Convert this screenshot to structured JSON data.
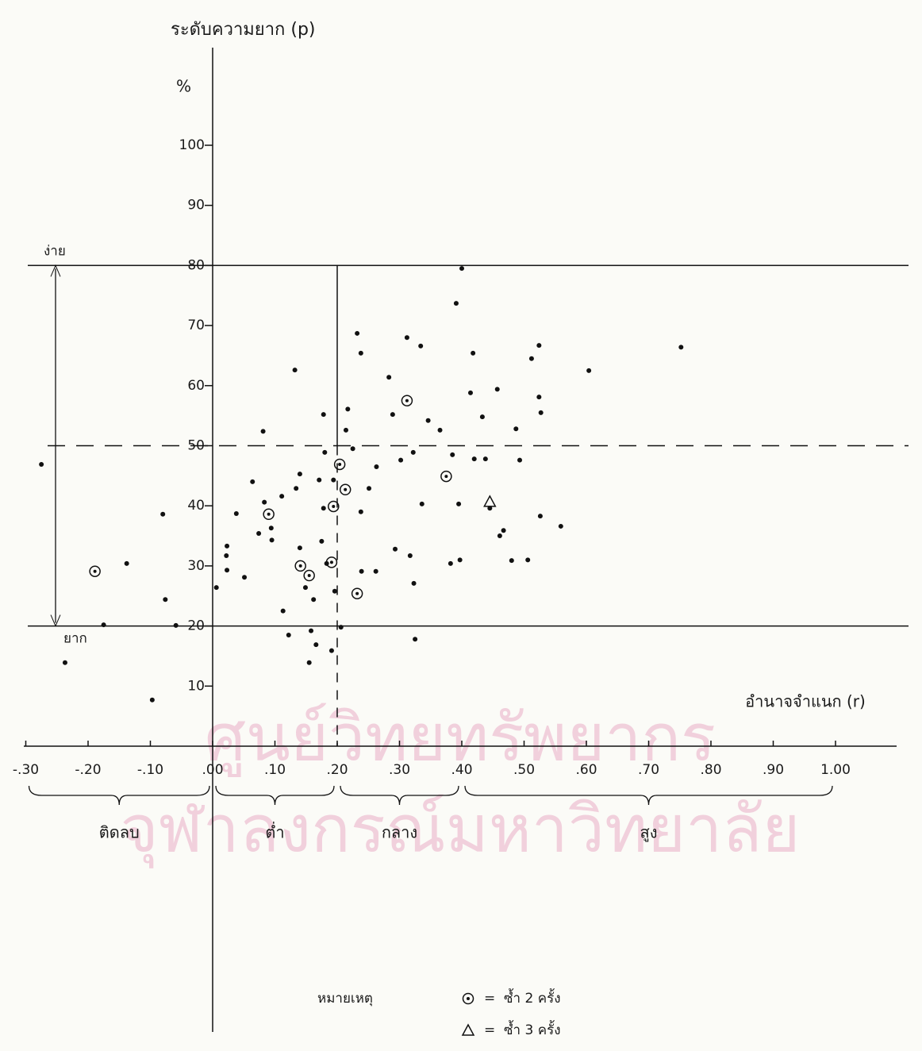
{
  "chart_data": {
    "type": "scatter",
    "title": "ระดับความยาก (p)",
    "y_unit": "%",
    "x_label": "อำนาจจำแนก (r)",
    "annotations": [
      "ง่าย",
      "ยาก"
    ],
    "xlim": [
      -0.3,
      1.0
    ],
    "ylim": [
      0,
      100
    ],
    "xticks": [
      {
        "value": -0.3,
        "label": "-.30"
      },
      {
        "value": -0.2,
        "label": "-.20"
      },
      {
        "value": -0.1,
        "label": "-.10"
      },
      {
        "value": 0,
        "label": ".00"
      },
      {
        "value": 0.1,
        "label": ".10"
      },
      {
        "value": 0.2,
        "label": ".20"
      },
      {
        "value": 0.3,
        "label": ".30"
      },
      {
        "value": 0.4,
        "label": ".40"
      },
      {
        "value": 0.5,
        "label": ".50"
      },
      {
        "value": 0.6,
        "label": ".60"
      },
      {
        "value": 0.7,
        "label": ".70"
      },
      {
        "value": 0.8,
        "label": ".80"
      },
      {
        "value": 0.9,
        "label": ".90"
      },
      {
        "value": 1.0,
        "label": "1.00"
      }
    ],
    "yticks": [
      10,
      20,
      30,
      40,
      50,
      60,
      70,
      80,
      90,
      100
    ],
    "hlines": [
      80,
      20
    ],
    "dashed_hline": 50,
    "vline": 0.2,
    "groups": [
      {
        "label": "ติดลบ",
        "range": [
          -0.3,
          0
        ]
      },
      {
        "label": "ต่ำ",
        "range": [
          0,
          0.2
        ]
      },
      {
        "label": "กลาง",
        "range": [
          0.2,
          0.4
        ]
      },
      {
        "label": "สูง",
        "range": [
          0.4,
          1.0
        ]
      }
    ],
    "legend_title": "หมายเหตุ",
    "series": [
      {
        "marker": "dot",
        "color": "#111111",
        "x": [
          -0.275,
          -0.138,
          -0.08,
          -0.076,
          -0.097,
          -0.237,
          -0.175,
          -0.059,
          0.006,
          0.023,
          0.022,
          0.023,
          0.038,
          0.051,
          0.064,
          0.074,
          0.081,
          0.083,
          0.094,
          0.095,
          0.111,
          0.113,
          0.122,
          0.132,
          0.134,
          0.14,
          0.14,
          0.149,
          0.155,
          0.158,
          0.162,
          0.166,
          0.171,
          0.175,
          0.178,
          0.178,
          0.18,
          0.183,
          0.191,
          0.194,
          0.196,
          0.206,
          0.214,
          0.217,
          0.225,
          0.232,
          0.238,
          0.238,
          0.239,
          0.251,
          0.262,
          0.263,
          0.283,
          0.289,
          0.293,
          0.302,
          0.312,
          0.317,
          0.322,
          0.323,
          0.325,
          0.334,
          0.336,
          0.346,
          0.365,
          0.382,
          0.385,
          0.391,
          0.395,
          0.397,
          0.4,
          0.414,
          0.418,
          0.42,
          0.433,
          0.438,
          0.445,
          0.457,
          0.461,
          0.467,
          0.48,
          0.487,
          0.493,
          0.506,
          0.512,
          0.524,
          0.524,
          0.527,
          0.526,
          0.559,
          0.604,
          0.752
        ],
        "values": [
          46.9,
          30.4,
          38.6,
          24.4,
          7.7,
          13.9,
          20.2,
          20.1,
          26.4,
          33.3,
          31.7,
          29.3,
          38.7,
          28.1,
          44,
          35.4,
          52.4,
          40.6,
          36.3,
          34.3,
          41.6,
          22.5,
          18.5,
          62.6,
          42.9,
          45.3,
          33,
          26.4,
          13.9,
          19.2,
          24.4,
          16.9,
          44.3,
          34.1,
          55.2,
          39.6,
          48.9,
          30.4,
          15.9,
          44.3,
          25.8,
          19.8,
          52.6,
          56.1,
          49.5,
          68.7,
          65.4,
          39,
          29.1,
          42.9,
          29.1,
          46.5,
          61.4,
          55.2,
          32.8,
          47.6,
          68,
          31.7,
          48.9,
          27.1,
          17.8,
          66.6,
          40.3,
          54.2,
          52.6,
          30.4,
          48.5,
          73.7,
          40.3,
          31,
          79.5,
          58.8,
          65.4,
          47.8,
          54.8,
          47.8,
          39.6,
          59.4,
          35,
          35.9,
          30.9,
          52.8,
          47.6,
          31,
          64.5,
          66.7,
          58.1,
          55.5,
          38.3,
          36.6,
          62.5,
          66.4
        ]
      },
      {
        "name": "ซ้ำ 2 ครั้ง",
        "marker": "circle",
        "color": "#111111",
        "x": [
          -0.189,
          0.09,
          0.141,
          0.155,
          0.194,
          0.191,
          0.204,
          0.213,
          0.232,
          0.312,
          0.375
        ],
        "values": [
          29.1,
          38.6,
          30,
          28.4,
          39.9,
          30.6,
          46.9,
          42.7,
          25.4,
          57.5,
          44.9
        ]
      },
      {
        "name": "ซ้ำ 3 ครั้ง",
        "marker": "triangle",
        "color": "#111111",
        "x": [
          0.445
        ],
        "values": [
          40.7
        ]
      }
    ],
    "watermark": [
      "ศูนย์วิทยทรัพยากร",
      "จุฬาลงกรณ์มหาวิทยาลัย"
    ]
  }
}
